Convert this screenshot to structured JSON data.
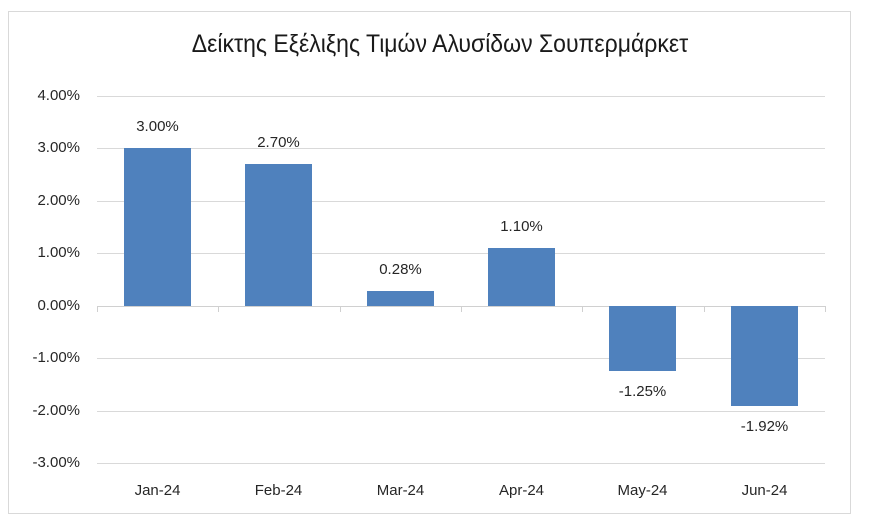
{
  "chart_data": {
    "type": "bar",
    "title": "Δείκτης Εξέλιξης Τιμών Αλυσίδων Σουπερμάρκετ",
    "categories": [
      "Jan-24",
      "Feb-24",
      "Mar-24",
      "Apr-24",
      "May-24",
      "Jun-24"
    ],
    "values": [
      3.0,
      2.7,
      0.28,
      1.1,
      -1.25,
      -1.92
    ],
    "data_labels": [
      "3.00%",
      "2.70%",
      "0.28%",
      "1.10%",
      "-1.25%",
      "-1.92%"
    ],
    "xlabel": "",
    "ylabel": "",
    "ylim": [
      -3.0,
      4.0
    ],
    "yticks": [
      "4.00%",
      "3.00%",
      "2.00%",
      "1.00%",
      "0.00%",
      "-1.00%",
      "-2.00%",
      "-3.00%"
    ],
    "grid": true,
    "legend": "none",
    "bar_color": "#4f81bd"
  }
}
